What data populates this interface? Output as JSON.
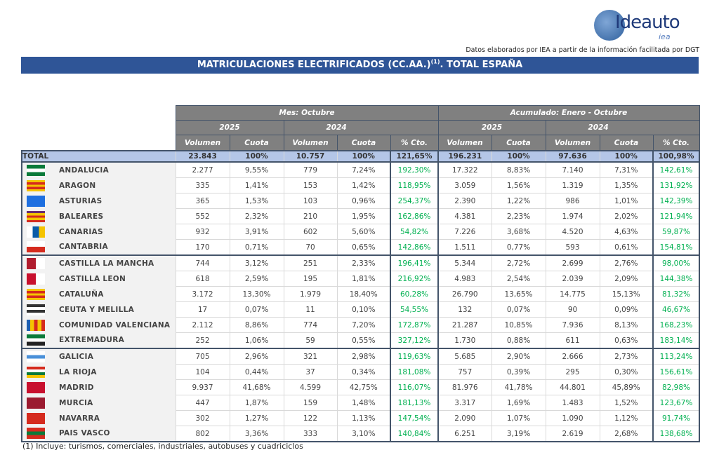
{
  "logo": {
    "text": "Ideauto",
    "sub": "iea"
  },
  "source": "Datos elaborados por IEA a partir de la información facilitada por DGT",
  "title": {
    "main": "MATRICULACIONES ELECTRIFICADOS (CC.AA.)",
    "sup": "(1)",
    "rest": ". TOTAL ESPAÑA"
  },
  "headers": {
    "mes": "Mes: Octubre",
    "acum": "Acumulado: Enero - Octubre",
    "y2025": "2025",
    "y2024": "2024",
    "volumen": "Volumen",
    "cuota": "Cuota",
    "cto": "% Cto."
  },
  "total": {
    "label": "TOTAL",
    "values": [
      "23.843",
      "100%",
      "10.757",
      "100%",
      "121,65%",
      "196.231",
      "100%",
      "97.636",
      "100%",
      "100,98%"
    ]
  },
  "rows": [
    {
      "name": "ANDALUCIA",
      "flag": [
        "#0a7a3a",
        "#fff",
        "#0a7a3a"
      ],
      "values": [
        "2.277",
        "9,55%",
        "779",
        "7,24%",
        "192,30%",
        "17.322",
        "8,83%",
        "7.140",
        "7,31%",
        "142,61%"
      ]
    },
    {
      "name": "ARAGON",
      "flag": [
        "#f5c400",
        "#d52b1e",
        "#f5c400",
        "#d52b1e",
        "#f5c400"
      ],
      "values": [
        "335",
        "1,41%",
        "153",
        "1,42%",
        "118,95%",
        "3.059",
        "1,56%",
        "1.319",
        "1,35%",
        "131,92%"
      ]
    },
    {
      "name": "ASTURIAS",
      "flag": [
        "#1e6fe0"
      ],
      "values": [
        "365",
        "1,53%",
        "103",
        "0,96%",
        "254,37%",
        "2.390",
        "1,22%",
        "986",
        "1,01%",
        "142,39%"
      ]
    },
    {
      "name": "BALEARES",
      "flag": [
        "#6a2c70",
        "#f5c400",
        "#d52b1e",
        "#f5c400",
        "#d52b1e"
      ],
      "values": [
        "552",
        "2,32%",
        "210",
        "1,95%",
        "162,86%",
        "4.381",
        "2,23%",
        "1.974",
        "2,02%",
        "121,94%"
      ]
    },
    {
      "name": "CANARIAS",
      "flag": [
        "#fff",
        "#0a5ca8",
        "#f5c400"
      ],
      "dir": "h",
      "values": [
        "932",
        "3,91%",
        "602",
        "5,60%",
        "54,82%",
        "7.226",
        "3,68%",
        "4.520",
        "4,63%",
        "59,87%"
      ]
    },
    {
      "name": "CANTABRIA",
      "flag": [
        "#fff",
        "#d52b1e"
      ],
      "values": [
        "170",
        "0,71%",
        "70",
        "0,65%",
        "142,86%",
        "1.511",
        "0,77%",
        "593",
        "0,61%",
        "154,81%"
      ]
    },
    {
      "name": "CASTILLA LA MANCHA",
      "flag": [
        "#b01c2e",
        "#fff"
      ],
      "dir": "h",
      "values": [
        "744",
        "3,12%",
        "251",
        "2,33%",
        "196,41%",
        "5.344",
        "2,72%",
        "2.699",
        "2,76%",
        "98,00%"
      ]
    },
    {
      "name": "CASTILLA LEON",
      "flag": [
        "#c8102e",
        "#fff"
      ],
      "dir": "h",
      "values": [
        "618",
        "2,59%",
        "195",
        "1,81%",
        "216,92%",
        "4.983",
        "2,54%",
        "2.039",
        "2,09%",
        "144,38%"
      ]
    },
    {
      "name": "CATALUÑA",
      "flag": [
        "#f5c400",
        "#d52b1e",
        "#f5c400",
        "#d52b1e",
        "#f5c400"
      ],
      "values": [
        "3.172",
        "13,30%",
        "1.979",
        "18,40%",
        "60,28%",
        "26.790",
        "13,65%",
        "14.775",
        "15,13%",
        "81,32%"
      ]
    },
    {
      "name": "CEUTA Y MELILLA",
      "flag": [
        "#333",
        "#fff",
        "#333",
        "#fff"
      ],
      "values": [
        "17",
        "0,07%",
        "11",
        "0,10%",
        "54,55%",
        "132",
        "0,07%",
        "90",
        "0,09%",
        "46,67%"
      ]
    },
    {
      "name": "COMUNIDAD VALENCIANA",
      "flag": [
        "#1e5fb0",
        "#f5c400",
        "#d52b1e",
        "#f5c400",
        "#d52b1e"
      ],
      "dir": "h",
      "values": [
        "2.112",
        "8,86%",
        "774",
        "7,20%",
        "172,87%",
        "21.287",
        "10,85%",
        "7.936",
        "8,13%",
        "168,23%"
      ]
    },
    {
      "name": "EXTREMADURA",
      "flag": [
        "#0a7a3a",
        "#fff",
        "#222"
      ],
      "values": [
        "252",
        "1,06%",
        "59",
        "0,55%",
        "327,12%",
        "1.730",
        "0,88%",
        "611",
        "0,63%",
        "183,14%"
      ]
    },
    {
      "name": "GALICIA",
      "flag": [
        "#fff",
        "#4a90d9",
        "#fff"
      ],
      "values": [
        "705",
        "2,96%",
        "321",
        "2,98%",
        "119,63%",
        "5.685",
        "2,90%",
        "2.666",
        "2,73%",
        "113,24%"
      ]
    },
    {
      "name": "LA RIOJA",
      "flag": [
        "#d52b1e",
        "#fff",
        "#0a7a3a",
        "#f5c400"
      ],
      "values": [
        "104",
        "0,44%",
        "37",
        "0,34%",
        "181,08%",
        "757",
        "0,39%",
        "295",
        "0,30%",
        "156,61%"
      ]
    },
    {
      "name": "MADRID",
      "flag": [
        "#c8102e"
      ],
      "values": [
        "9.937",
        "41,68%",
        "4.599",
        "42,75%",
        "116,07%",
        "81.976",
        "41,78%",
        "44.801",
        "45,89%",
        "82,98%"
      ]
    },
    {
      "name": "MURCIA",
      "flag": [
        "#9b1b30"
      ],
      "values": [
        "447",
        "1,87%",
        "159",
        "1,48%",
        "181,13%",
        "3.317",
        "1,69%",
        "1.483",
        "1,52%",
        "123,67%"
      ]
    },
    {
      "name": "NAVARRA",
      "flag": [
        "#d52b1e"
      ],
      "values": [
        "302",
        "1,27%",
        "122",
        "1,13%",
        "147,54%",
        "2.090",
        "1,07%",
        "1.090",
        "1,12%",
        "91,74%"
      ]
    },
    {
      "name": "PAIS VASCO",
      "flag": [
        "#d52b1e",
        "#0a7a3a",
        "#d52b1e"
      ],
      "values": [
        "802",
        "3,36%",
        "333",
        "3,10%",
        "140,84%",
        "6.251",
        "3,19%",
        "2.619",
        "2,68%",
        "138,68%"
      ]
    }
  ],
  "footnote": "(1) Incluye: turismos, comerciales, industriales, autobuses y cuadriciclos"
}
